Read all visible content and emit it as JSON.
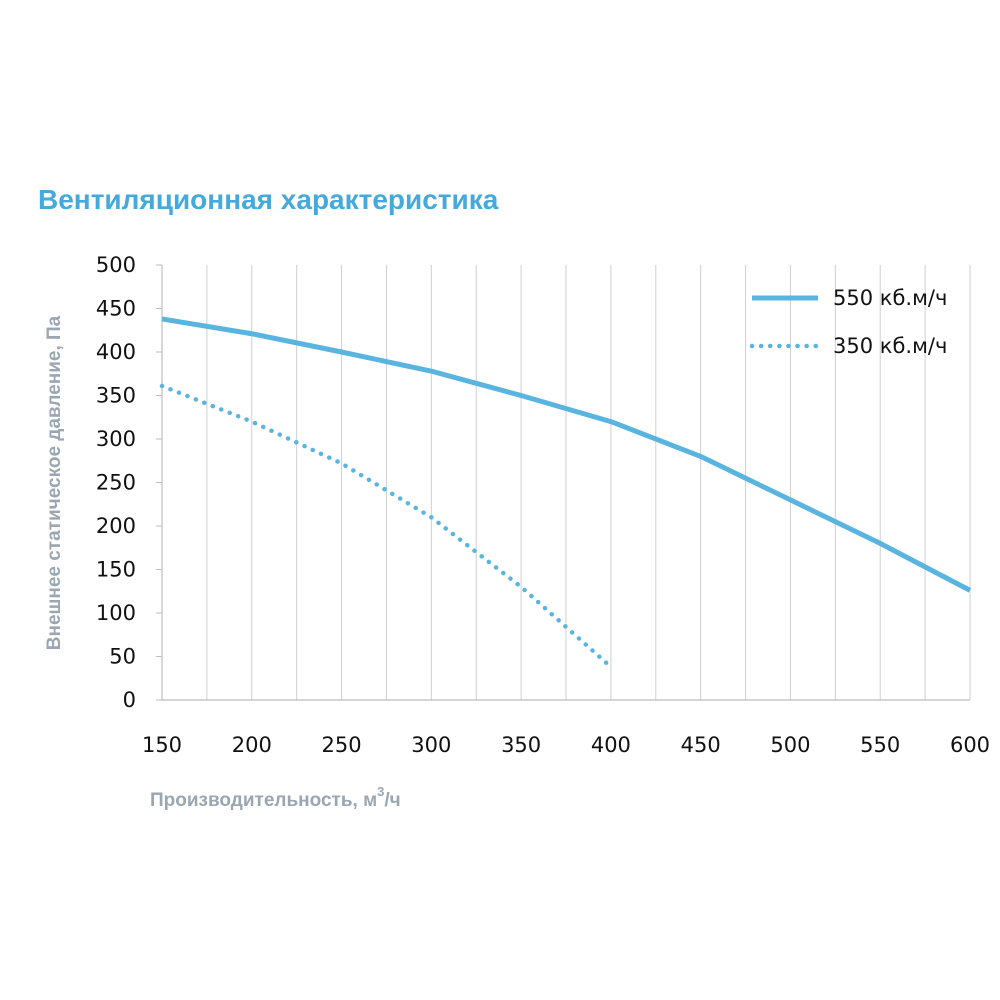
{
  "chart_data": {
    "type": "line",
    "title": "Вентиляционная характеристика",
    "xlabel": "Производительность, м",
    "xlabel_sup": "3",
    "xlabel_suffix": "/ч",
    "ylabel": "Внешнее статическое давление, Па",
    "xlim": [
      150,
      600
    ],
    "ylim": [
      0,
      500
    ],
    "x_ticks": [
      150,
      200,
      250,
      300,
      350,
      400,
      450,
      500,
      550,
      600
    ],
    "y_ticks": [
      0,
      50,
      100,
      150,
      200,
      250,
      300,
      350,
      400,
      450,
      500
    ],
    "grid": "vertical",
    "legend_position": "top-right",
    "series": [
      {
        "name": "550 кб.м/ч",
        "style": "solid",
        "color": "#5ab4e0",
        "x": [
          150,
          200,
          250,
          300,
          350,
          400,
          450,
          500,
          550,
          600
        ],
        "y": [
          438,
          421,
          400,
          378,
          350,
          320,
          280,
          230,
          180,
          126
        ]
      },
      {
        "name": "350 кб.м/ч",
        "style": "dotted",
        "color": "#5ab4e0",
        "x": [
          150,
          200,
          250,
          300,
          350,
          400
        ],
        "y": [
          361,
          320,
          272,
          210,
          130,
          38
        ]
      }
    ]
  },
  "colors": {
    "title": "#45a9dc",
    "axis_title": "#9aa6b2",
    "grid": "#cfcfcf",
    "axis": "#bdbdbd",
    "series": "#5ab4e0"
  }
}
